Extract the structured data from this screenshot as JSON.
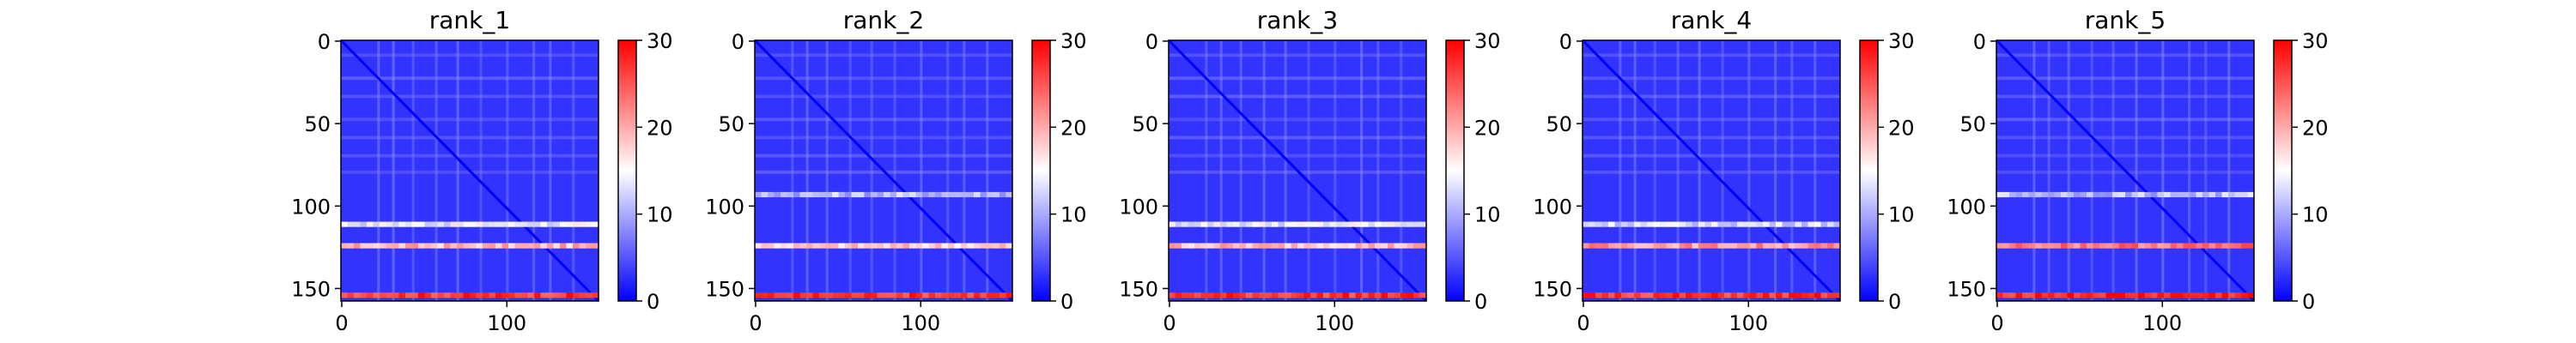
{
  "chart_data": [
    {
      "type": "heatmap",
      "title": "rank_1",
      "xlabel": "",
      "ylabel": "",
      "x_ticks": [
        0,
        100
      ],
      "y_ticks": [
        0,
        50,
        100,
        150
      ],
      "size": 156,
      "colorbar": {
        "ticks": [
          0,
          10,
          20,
          30
        ],
        "range": [
          0,
          30
        ],
        "colormap": "bwr"
      },
      "grid": false,
      "legend": "none",
      "bright_rows": [
        [
          111,
          14
        ],
        [
          124,
          19
        ],
        [
          154,
          27
        ]
      ]
    },
    {
      "type": "heatmap",
      "title": "rank_2",
      "xlabel": "",
      "ylabel": "",
      "x_ticks": [
        0,
        100
      ],
      "y_ticks": [
        0,
        50,
        100,
        150
      ],
      "size": 156,
      "colorbar": {
        "ticks": [
          0,
          10,
          20,
          30
        ],
        "range": [
          0,
          30
        ],
        "colormap": "bwr"
      },
      "grid": false,
      "legend": "none",
      "bright_rows": [
        [
          93,
          11
        ],
        [
          124,
          18
        ],
        [
          154,
          27
        ]
      ]
    },
    {
      "type": "heatmap",
      "title": "rank_3",
      "xlabel": "",
      "ylabel": "",
      "x_ticks": [
        0,
        100
      ],
      "y_ticks": [
        0,
        50,
        100,
        150
      ],
      "size": 156,
      "colorbar": {
        "ticks": [
          0,
          10,
          20,
          30
        ],
        "range": [
          0,
          30
        ],
        "colormap": "bwr"
      },
      "grid": false,
      "legend": "none",
      "bright_rows": [
        [
          111,
          14
        ],
        [
          124,
          19
        ],
        [
          154,
          27
        ]
      ]
    },
    {
      "type": "heatmap",
      "title": "rank_4",
      "xlabel": "",
      "ylabel": "",
      "x_ticks": [
        0,
        100
      ],
      "y_ticks": [
        0,
        50,
        100,
        150
      ],
      "size": 156,
      "colorbar": {
        "ticks": [
          0,
          10,
          20,
          30
        ],
        "range": [
          0,
          30
        ],
        "colormap": "bwr"
      },
      "grid": false,
      "legend": "none",
      "bright_rows": [
        [
          111,
          13
        ],
        [
          124,
          21
        ],
        [
          154,
          27
        ]
      ]
    },
    {
      "type": "heatmap",
      "title": "rank_5",
      "xlabel": "",
      "ylabel": "",
      "x_ticks": [
        0,
        100
      ],
      "y_ticks": [
        0,
        50,
        100,
        150
      ],
      "size": 156,
      "colorbar": {
        "ticks": [
          0,
          10,
          20,
          30
        ],
        "range": [
          0,
          30
        ],
        "colormap": "bwr"
      },
      "grid": false,
      "legend": "none",
      "bright_rows": [
        [
          93,
          11
        ],
        [
          124,
          23
        ],
        [
          154,
          28
        ]
      ]
    }
  ]
}
